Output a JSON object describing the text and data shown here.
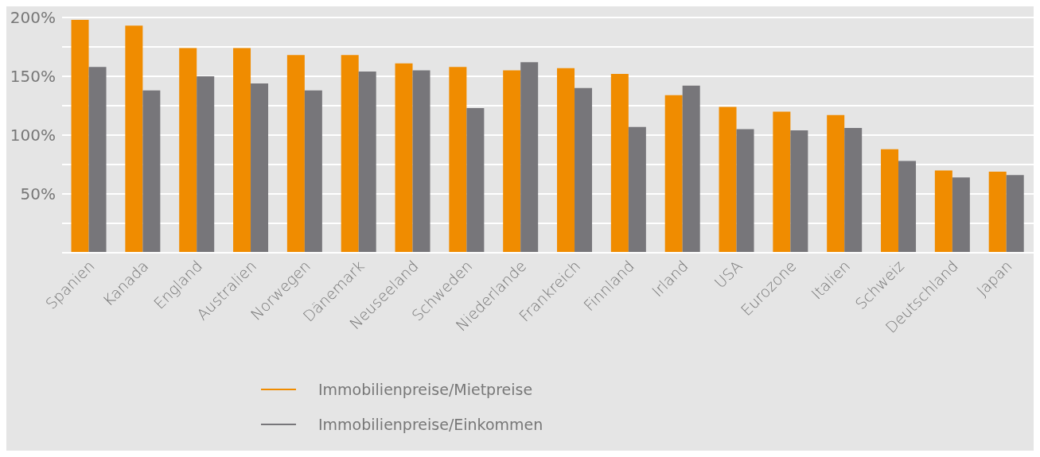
{
  "chart_data": {
    "type": "bar",
    "categories": [
      "Spanien",
      "Kanada",
      "England",
      "Australien",
      "Norwegen",
      "Dänemark",
      "Neuseeland",
      "Schweden",
      "Niederlande",
      "Frankreich",
      "Finnland",
      "Irland",
      "USA",
      "Eurozone",
      "Italien",
      "Schweiz",
      "Deutschland",
      "Japan"
    ],
    "series": [
      {
        "name": "Immobilienpreise/Mietpreise",
        "color": "#f08c00",
        "values": [
          198,
          193,
          174,
          174,
          168,
          168,
          161,
          158,
          155,
          157,
          152,
          134,
          124,
          120,
          117,
          88,
          70,
          69
        ]
      },
      {
        "name": "Immobilienpreise/Einkommen",
        "color": "#77767a",
        "values": [
          158,
          138,
          150,
          144,
          138,
          154,
          155,
          123,
          162,
          140,
          107,
          142,
          105,
          104,
          106,
          78,
          64,
          66
        ]
      }
    ],
    "ylim": [
      0,
      200
    ],
    "yticks": [
      {
        "value": 0,
        "label": null
      },
      {
        "value": 25,
        "label": null
      },
      {
        "value": 50,
        "label": "50%"
      },
      {
        "value": 75,
        "label": null
      },
      {
        "value": 100,
        "label": "100%"
      },
      {
        "value": 125,
        "label": null
      },
      {
        "value": 150,
        "label": "150%"
      },
      {
        "value": 175,
        "label": null
      },
      {
        "value": 200,
        "label": "200%"
      }
    ],
    "grid": "y",
    "legend": "bottom"
  }
}
